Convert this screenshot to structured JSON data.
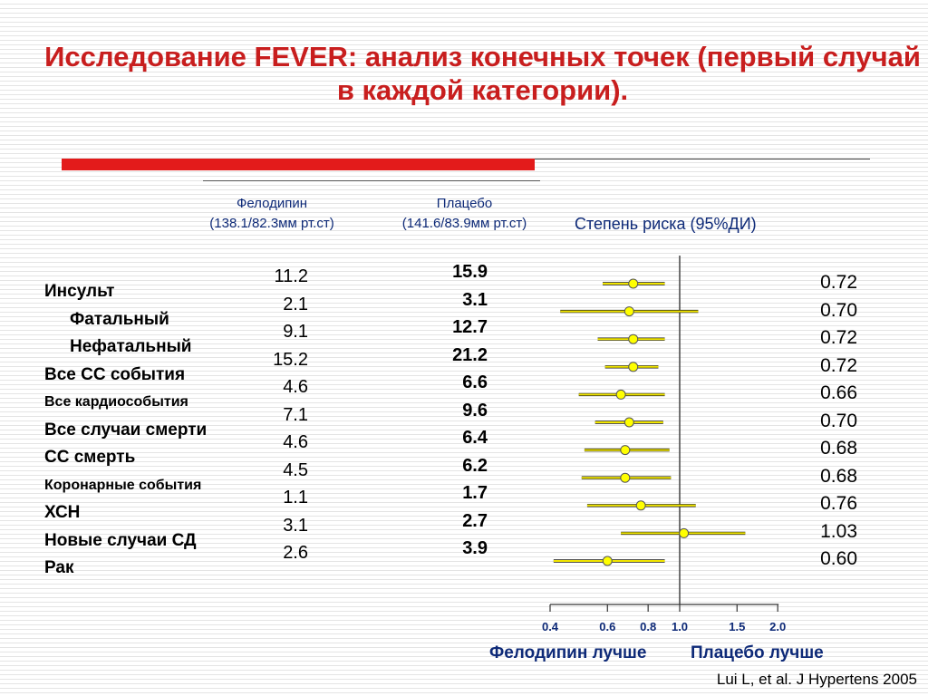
{
  "title": "Исследование FEVER: анализ конечных точек (первый случай в каждой категории).",
  "columns": {
    "felodipine": {
      "name": "Фелодипин",
      "bp": "(138.1/82.3мм рт.ст)"
    },
    "placebo": {
      "name": "Плацебо",
      "bp": "(141.6/83.9мм рт.ст)"
    },
    "risk": "Степень риска (95%ДИ)"
  },
  "endpoints": [
    "Инсульт",
    "Фатальный",
    "Нефатальный",
    "Все СС события",
    "Все кардиособытия",
    "Все случаи смерти",
    "СС смерть",
    "Коронарные события",
    "ХСН",
    "Новые случаи СД",
    "Рак"
  ],
  "felodipine_values": [
    "11.2",
    "2.1",
    "9.1",
    "15.2",
    "4.6",
    "7.1",
    "4.6",
    "4.5",
    "1.1",
    "3.1",
    "2.6"
  ],
  "placebo_values": [
    "15.9",
    "3.1",
    "12.7",
    "21.2",
    "6.6",
    "9.6",
    "6.4",
    "6.2",
    "1.7",
    "2.7",
    "3.9"
  ],
  "hr_labels": [
    "0.72",
    "0.70",
    "0.72",
    "0.72",
    "0.66",
    "0.70",
    "0.68",
    "0.68",
    "0.76",
    "1.03",
    "0.60"
  ],
  "axis": {
    "ticks": [
      "0.4",
      "0.6",
      "0.8",
      "1.0",
      "1.5",
      "2.0"
    ],
    "favors_left": "Фелодипин лучше",
    "favors_right": "Плацебо лучше"
  },
  "citation": "Lui L, et al. J Hypertens 2005",
  "chart_data": {
    "type": "forest",
    "title": "",
    "xlabel": "Степень риска (95%ДИ)",
    "x_scale": "log",
    "xlim": [
      0.4,
      2.0
    ],
    "reference_line": 1.0,
    "series": [
      {
        "name": "Степень риска (95%ДИ)",
        "hr": [
          0.72,
          0.7,
          0.72,
          0.72,
          0.66,
          0.7,
          0.68,
          0.68,
          0.76,
          1.03,
          0.6
        ],
        "ci_low": [
          0.58,
          0.43,
          0.56,
          0.59,
          0.49,
          0.55,
          0.51,
          0.5,
          0.52,
          0.66,
          0.41
        ],
        "ci_high": [
          0.9,
          1.14,
          0.9,
          0.86,
          0.9,
          0.89,
          0.93,
          0.94,
          1.12,
          1.59,
          0.9
        ]
      }
    ],
    "colors": {
      "marker": "#ffff00",
      "ci_line": "#f2e600",
      "marker_border": "#555555",
      "ref_line": "#444444"
    }
  }
}
